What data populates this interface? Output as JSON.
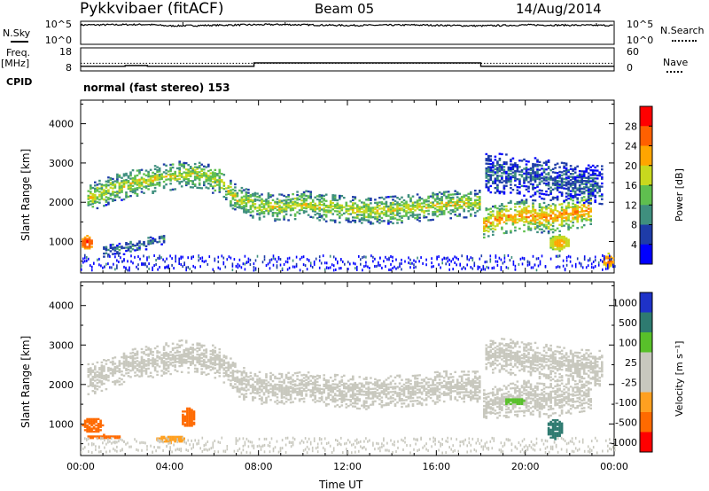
{
  "header": {
    "site": "Pykkvibaer (fitACF)",
    "beam": "Beam 05",
    "date": "14/Aug/2014"
  },
  "left_labels": {
    "nsky": "N.Sky",
    "freq": "Freq.",
    "freq_unit": "[MHz]",
    "cpid": "CPID"
  },
  "right_labels": {
    "nsearch": "N.Search",
    "nave": "Nave"
  },
  "cpid_text": "normal (fast stereo) 153",
  "colors": {
    "power_scale": [
      "#0000ff",
      "#1e3ca8",
      "#3f8f7e",
      "#5fbf4f",
      "#c8d81e",
      "#ffa500",
      "#ff6000",
      "#ff0000"
    ],
    "velocity_scale": [
      "#ff0000",
      "#ff6a00",
      "#ffa020",
      "#c8c8be",
      "#c8c8be",
      "#58c02a",
      "#2e7a70",
      "#1e32c8"
    ],
    "scatter_gray": "#c8c8be"
  },
  "chart_data": [
    {
      "type": "line",
      "name": "noise-panel",
      "y_left_ticks": [
        "10^5",
        "10^0"
      ],
      "y_right_ticks": [
        "10^5",
        "10^0"
      ],
      "series": [
        {
          "name": "N.Sky",
          "x": [
            0,
            3,
            4,
            7,
            9,
            12,
            15,
            18,
            20,
            24
          ],
          "y": [
            4.2,
            4.3,
            4.0,
            4.2,
            4.3,
            4.1,
            4.2,
            4.0,
            4.2,
            4.1
          ]
        }
      ]
    },
    {
      "type": "line",
      "name": "frequency-panel",
      "y_left_ticks": [
        "18",
        "8"
      ],
      "y_right_ticks": [
        "60",
        "0"
      ],
      "series": [
        {
          "name": "Freq.",
          "x": [
            0,
            2.0,
            2.0,
            3.0,
            3.0,
            7.8,
            7.8,
            18.0,
            18.0,
            24
          ],
          "y": [
            10.0,
            10.0,
            10.3,
            10.3,
            10.0,
            10.0,
            11.5,
            11.5,
            10.0,
            10.0
          ]
        },
        {
          "name": "Nave",
          "x": [
            0,
            24
          ],
          "y": [
            20,
            20
          ]
        }
      ]
    },
    {
      "type": "heatmap",
      "name": "power-panel",
      "xlabel": "",
      "ylabel": "Slant Range [km]",
      "x_ticks": [
        "00:00",
        "04:00",
        "08:00",
        "12:00",
        "16:00",
        "20:00",
        "00:00"
      ],
      "xlim": [
        0,
        24
      ],
      "y_ticks": [
        1000,
        2000,
        3000,
        4000
      ],
      "ylim": [
        200,
        4600
      ],
      "colorbar_label": "Power [dB]",
      "colorbar_ticks": [
        4,
        8,
        12,
        16,
        20,
        24,
        28
      ],
      "colorbar_range": [
        0,
        32
      ],
      "bands": [
        {
          "x": [
            0.3,
            1.5,
            2.5,
            3.5,
            4.5,
            5.5,
            6.3,
            7.0,
            8.0,
            9.0,
            10.0,
            11.0,
            12.0,
            13.0,
            14.0,
            15.0,
            16.0,
            17.0,
            17.9
          ],
          "y": [
            2100,
            2350,
            2500,
            2600,
            2700,
            2650,
            2500,
            2050,
            1900,
            1850,
            1950,
            1850,
            1800,
            1750,
            1800,
            1850,
            1900,
            1950,
            1950
          ],
          "width": 350,
          "value": 18
        },
        {
          "x": [
            18.1,
            19.0,
            20.0,
            21.0,
            22.0,
            23.0
          ],
          "y": [
            1450,
            1600,
            1650,
            1600,
            1700,
            1800
          ],
          "width": 400,
          "value": 23
        },
        {
          "x": [
            1.0,
            2.0,
            3.0,
            3.8
          ],
          "y": [
            750,
            820,
            950,
            1050
          ],
          "width": 150,
          "value": 10
        },
        {
          "x": [
            18.2,
            20.0,
            22.0,
            23.5
          ],
          "y": [
            2750,
            2650,
            2450,
            2400
          ],
          "width": 500,
          "value": 8
        }
      ],
      "patches": [
        {
          "x": 0.25,
          "y": 950,
          "rx": 0.3,
          "ry": 180,
          "value": 29
        },
        {
          "x": 21.5,
          "y": 950,
          "rx": 0.5,
          "ry": 200,
          "value": 22
        },
        {
          "x": 23.7,
          "y": 500,
          "rx": 0.3,
          "ry": 180,
          "value": 25
        }
      ]
    },
    {
      "type": "heatmap",
      "name": "velocity-panel",
      "xlabel": "Time UT",
      "ylabel": "Slant Range [km]",
      "x_ticks": [
        "00:00",
        "04:00",
        "08:00",
        "12:00",
        "16:00",
        "20:00",
        "00:00"
      ],
      "xlim": [
        0,
        24
      ],
      "y_ticks": [
        1000,
        2000,
        3000,
        4000
      ],
      "ylim": [
        200,
        4600
      ],
      "colorbar_label": "Velocity [m s⁻¹]",
      "colorbar_ticks": [
        1000,
        500,
        100,
        25,
        -25,
        -100,
        -500,
        -1000
      ],
      "bands": [
        {
          "x": [
            0.3,
            1.5,
            2.5,
            3.5,
            4.5,
            5.5,
            6.3,
            7.0,
            8.0,
            9.0,
            10.0,
            11.0,
            12.0,
            13.0,
            14.0,
            15.0,
            16.0,
            17.0,
            17.9
          ],
          "y": [
            2100,
            2350,
            2500,
            2600,
            2700,
            2650,
            2500,
            2050,
            1900,
            1850,
            1950,
            1850,
            1800,
            1750,
            1800,
            1850,
            1900,
            1950,
            1950
          ],
          "width": 400,
          "value": 0
        },
        {
          "x": [
            18.1,
            19.0,
            20.0,
            21.0,
            22.0,
            23.0
          ],
          "y": [
            1450,
            1600,
            1650,
            1600,
            1700,
            1800
          ],
          "width": 450,
          "value": 0
        },
        {
          "x": [
            18.2,
            20.0,
            22.0,
            23.5
          ],
          "y": [
            2750,
            2650,
            2450,
            2400
          ],
          "width": 450,
          "value": 0
        }
      ],
      "patches": [
        {
          "x": 0.5,
          "y": 950,
          "rx": 0.45,
          "ry": 200,
          "value": -300
        },
        {
          "x": 1.0,
          "y": 650,
          "rx": 0.8,
          "ry": 60,
          "value": -300
        },
        {
          "x": 4.8,
          "y": 1150,
          "rx": 0.35,
          "ry": 250,
          "value": -300
        },
        {
          "x": 4.0,
          "y": 600,
          "rx": 0.7,
          "ry": 100,
          "value": -60
        },
        {
          "x": 21.3,
          "y": 850,
          "rx": 0.4,
          "ry": 250,
          "value": 300
        },
        {
          "x": 19.5,
          "y": 1550,
          "rx": 0.5,
          "ry": 100,
          "value": 60
        }
      ]
    }
  ]
}
